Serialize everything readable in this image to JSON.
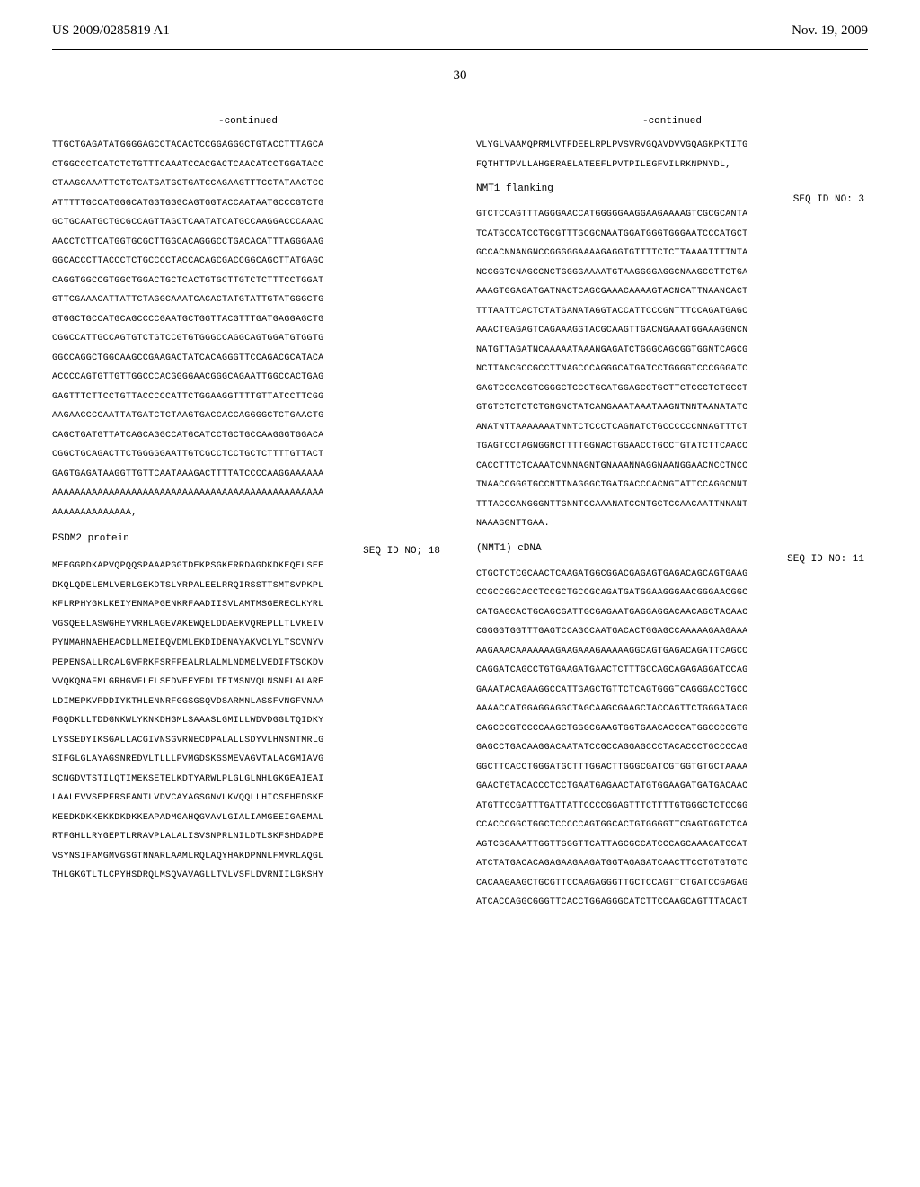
{
  "header": {
    "patent_number": "US 2009/0285819 A1",
    "date": "Nov. 19, 2009"
  },
  "page_number": "30",
  "left_col": {
    "continued_label": "-continued",
    "dna_seq": "TTGCTGAGATATGGGGAGCCTACACTCCGGAGGGCTGTACCTTTAGCA\nCTGGCCCTCATCTCTGTTTCAAATCCACGACTCAACATCCTGGATACC\nCTAAGCAAATTCTCTCATGATGCTGATCCAGAAGTTTCCTATAACTCC\nATTTTTGCCATGGGCATGGTGGGCAGTGGTACCAATAATGCCCGTCTG\nGCTGCAATGCTGCGCCAGTTAGCTCAATATCATGCCAAGGACCCAAAC\nAACCTCTTCATGGTGCGCTTGGCACAGGGCCTGACACATTTAGGGAAG\nGGCACCCTTACCCTCTGCCCCTACCACAGCGACCGGCAGCTTATGAGC\nCAGGTGGCCGTGGCTGGACTGCTCACTGTGCTTGTCTCTTTCCTGGAT\nGTTCGAAACATTATTCTAGGCAAATCACACTATGTATTGTATGGGCTG\nGTGGCTGCCATGCAGCCCCGAATGCTGGTTACGTTTGATGAGGAGCTG\nCGGCCATTGCCAGTGTCTGTCCGTGTGGGCCAGGCAGTGGATGTGGTG\nGGCCAGGCTGGCAAGCCGAAGACTATCACAGGGTTCCAGACGCATACA\nACCCCAGTGTTGTTGGCCCACGGGGAACGGGCAGAATTGGCCACTGAG\nGAGTTTCTTCCTGTTACCCCCATTCTGGAAGGTTTTGTTATCCTTCGG\nAAGAACCCCAATTATGATCTCTAAGTGACCACCAGGGGCTCTGAACTG\nCAGCTGATGTTATCAGCAGGCCATGCATCCTGCTGCCAAGGGTGGACA\nCGGCTGCAGACTTCTGGGGGAATTGTCGCCTCCTGCTCTTTTGTTACT\nGAGTGAGATAAGGTTGTTCAATAAAGACTTTTATCCCCAAGGAAAAAA\nAAAAAAAAAAAAAAAAAAAAAAAAAAAAAAAAAAAAAAAAAAAAAAAA\nAAAAAAAAAAAAAA,",
    "protein_label": "PSDM2 protein",
    "seq_id_18": "SEQ ID NO; 18",
    "protein_seq": "MEEGGRDKAPVQPQQSPAAAPGGTDEKPSGKERRDAGDKDKEQELSEE\nDKQLQDELEMLVERLGEKDTSLYRPALEELRRQIRSSTTSMTSVPKPL\nKFLRPHYGKLKEIYENMAPGENKRFAADIISVLAMTMSGERECLKYRL\nVGSQEELASWGHEYVRHLAGEVAKEWQELDDAEKVQREPLLTLVKEIV\nPYNMAHNAEHEACDLLMEIEQVDMLEKDIDENAYAKVCLYLTSCVNYV\nPEPENSALLRCALGVFRKFSRFPEALRLALMLNDMELVEDIFTSCKDV\nVVQKQMAFMLGRHGVFLELSEDVEEYEDLTEIMSNVQLNSNFLALARE\nLDIMEPKVPDDIYKTHLENNRFGGSGSQVDSARMNLASSFVNGFVNAA\nFGQDKLLTDDGNKWLYKNKDHGMLSAAASLGMILLWDVDGGLTQIDKY\nLYSSEDYIKSGALLACGIVNSGVRNECDPALALLSDYVLHNSNTMRLG\nSIFGLGLAYAGSNREDVLTLLLPVMGDSKSSMEVAGVTALACGMIAVG\nSCNGDVTSTILQTIMEKSETELKDTYARWLPLGLGLNHLGKGEAIEAI\nLAALEVVSEPFRSFANTLVDVCAYAGSGNVLKVQQLLHICSEHFDSKE\nKEEDKDKKEKKDKDKKEAPADMGAHQGVAVLGIALIAMGEEIGAEMAL\nRTFGHLLRYGEPTLRRAVPLALALISVSNPRLNILDTLSKFSHDADPE\nVSYNSIFAMGMVGSGTNNARLAAMLRQLAQYHAKDPNNLFMVRLAQGL\nTHLGKGTLTLCPYHSDRQLMSQVAVAGLLTVLVSFLDVRNIILGKSHY"
  },
  "right_col": {
    "continued_label": "-continued",
    "cont_seq": "VLYGLVAAMQPRMLVTFDEELRPLPVSVRVGQAVDVVGQAGKPKTITG\nFQTHTTPVLLAHGERAELATEEFLPVTPILEGFVILRKNPNYDL,",
    "flanking_label": "NMT1 flanking",
    "seq_id_3": "SEQ ID NO: 3",
    "flanking_seq": "GTCTCCAGTTTAGGGAACCATGGGGGAAGGAAGAAAAGTCGCGCANTA\nTCATGCCATCCTGCGTTTGCGCNAATGGATGGGTGGGAATCCCATGCT\nGCCACNNANGNCCGGGGGAAAAGAGGTGTTTTCTCTTAAAATTTTNTA\nNCCGGTCNAGCCNCTGGGGAAAATGTAAGGGGAGGCNAAGCCTTCTGA\nAAAGTGGAGATGATNACTCAGCGAAACAAAAGTACNCATTNAANCACT\nTTTAATTCACTCTATGANATAGGTACCATTCCCGNTTTCCAGATGAGC\nAAACTGAGAGTCAGAAAGGTACGCAAGTTGACNGAAATGGAAAGGNCN\nNATGTTAGATNCAAAAATAAANGAGATCTGGGCAGCGGTGGNTCAGCG\nNCTTANCGCCGCCTTNAGCCCAGGGCATGATCCTGGGGTCCCGGGATC\nGAGTCCCACGTCGGGCTCCCTGCATGGAGCCTGCTTCTCCCTCTGCCT\nGTGTCTCTCTCTGNGNCTATCANGAAATAAATAAGNTNNTAANATATC\nANATNTTAAAAAAATNNTCTCCCTCAGNATCTGCCCCCCNNAGTTTCT\nTGAGTCCTAGNGGNCTTTTGGNACTGGAACCTGCCTGTATCTTCAACC\nCACCTTTCTCAAATCNNNAGNTGNAAANNAGGNAANGGAACNCCTNCC\nTNAACCGGGTGCCNTTNAGGGCTGATGACCCACNGTATTCCAGGCNNT\nTTTACCCANGGGNTTGNNTCCAAANATCCNTGCTCCAACAATTNNANT\nNAAAGGNTTGAA.",
    "cdna_label": "(NMT1) cDNA",
    "seq_id_11": "SEQ ID NO: 11",
    "cdna_seq": "CTGCTCTCGCAACTCAAGATGGCGGACGAGAGTGAGACAGCAGTGAAG\nCCGCCGGCACCTCCGCTGCCGCAGATGATGGAAGGGAACGGGAACGGC\nCATGAGCACTGCAGCGATTGCGAGAATGAGGAGGACAACAGCTACAAC\nCGGGGTGGTTTGAGTCCAGCCAATGACACTGGAGCCAAAAAGAAGAAA\nAAGAAACAAAAAAAGAAGAAAGAAAAAGGCAGTGAGACAGATTCAGCC\nCAGGATCAGCCTGTGAAGATGAACTCTTTGCCAGCAGAGAGGATCCAG\nGAAATACAGAAGGCCATTGAGCTGTTCTCAGTGGGTCAGGGACCTGCC\nAAAACCATGGAGGAGGCTAGCAAGCGAAGCTACCAGTTCTGGGATACG\nCAGCCCGTCCCCAAGCTGGGCGAAGTGGTGAACACCCATGGCCCCGTG\nGAGCCTGACAAGGACAATATCCGCCAGGAGCCCTACACCCTGCCCCAG\nGGCTTCACCTGGGATGCTTTGGACTTGGGCGATCGTGGTGTGCTAAAA\nGAACTGTACACCCTCCTGAATGAGAACTATGTGGAAGATGATGACAAC\nATGTTCCGATTTGATTATTCCCCGGAGTTTCTTTTGTGGGCTCTCCGG\nCCACCCGGCTGGCTCCCCCAGTGGCACTGTGGGGTTCGAGTGGTCTCA\nAGTCGGAAATTGGTTGGGTTCATTAGCGCCATCCCAGCAAACATCCAT\nATCTATGACACAGAGAAGAAGATGGTAGAGATCAACTTCCTGTGTGTC\nCACAAGAAGCTGCGTTCCAAGAGGGTTGCTCCAGTTCTGATCCGAGAG\nATCACCAGGCGGGTTCACCTGGAGGGCATCTTCCAAGCAGTTTACACT"
  }
}
